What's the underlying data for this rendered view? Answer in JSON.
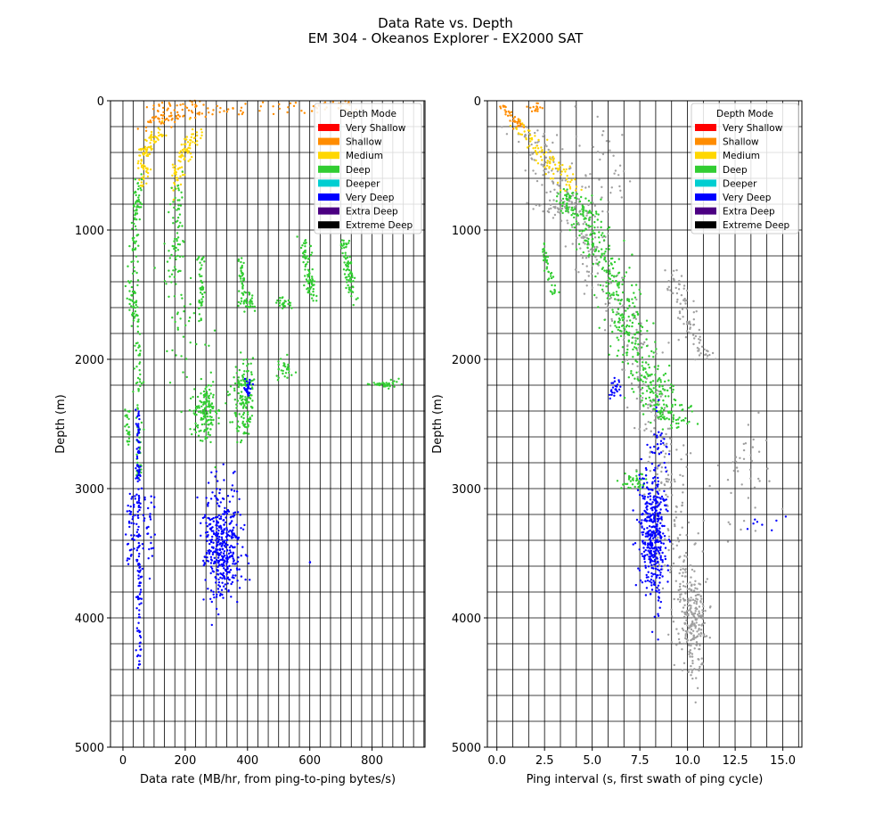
{
  "figure": {
    "title_line1": "Data Rate vs. Depth",
    "title_line2": "EM 304 - Okeanos Explorer - EX2000 SAT"
  },
  "legend": {
    "title": "Depth Mode",
    "entries": [
      {
        "label": "Very Shallow",
        "color": "#ff0000"
      },
      {
        "label": "Shallow",
        "color": "#ff8c00"
      },
      {
        "label": "Medium",
        "color": "#ffd700"
      },
      {
        "label": "Deep",
        "color": "#32cd32"
      },
      {
        "label": "Deeper",
        "color": "#00ced1"
      },
      {
        "label": "Very Deep",
        "color": "#0000ff"
      },
      {
        "label": "Extra Deep",
        "color": "#4b0082"
      },
      {
        "label": "Extreme Deep",
        "color": "#000000"
      }
    ]
  },
  "chart_data": [
    {
      "type": "scatter",
      "xlabel": "Data rate (MB/hr, from ping-to-ping bytes/s)",
      "ylabel": "Depth (m)",
      "xlim": [
        -40,
        970
      ],
      "ylim": [
        5000,
        0
      ],
      "y_inverted": true,
      "xticks": [
        0,
        200,
        400,
        600,
        800
      ],
      "yticks": [
        0,
        1000,
        2000,
        3000,
        4000,
        5000
      ],
      "grid": true,
      "legend_position": "top-right",
      "clusters": [
        {
          "mode": "Shallow",
          "color": "#ff8c00",
          "kind": "band",
          "points": [
            [
              70,
              200
            ],
            [
              110,
              150
            ],
            [
              160,
              120
            ],
            [
              230,
              90
            ],
            [
              330,
              70
            ],
            [
              480,
              60
            ],
            [
              650,
              50
            ],
            [
              740,
              40
            ]
          ],
          "spread": 10,
          "n": 120
        },
        {
          "mode": "Shallow",
          "color": "#ff8c00",
          "kind": "band",
          "points": [
            [
              80,
              50
            ],
            [
              120,
              40
            ],
            [
              200,
              35
            ],
            [
              260,
              30
            ]
          ],
          "spread": 8,
          "n": 30
        },
        {
          "mode": "Medium",
          "color": "#ffd700",
          "kind": "band",
          "points": [
            [
              60,
              650
            ],
            [
              70,
              450
            ],
            [
              90,
              320
            ],
            [
              120,
              220
            ]
          ],
          "spread": 10,
          "n": 90
        },
        {
          "mode": "Medium",
          "color": "#ffd700",
          "kind": "band",
          "points": [
            [
              170,
              700
            ],
            [
              180,
              500
            ],
            [
              200,
              350
            ],
            [
              240,
              250
            ]
          ],
          "spread": 12,
          "n": 90
        },
        {
          "mode": "Deep",
          "color": "#32cd32",
          "kind": "band",
          "points": [
            [
              55,
              550
            ],
            [
              45,
              800
            ],
            [
              35,
              1100
            ],
            [
              30,
              1500
            ],
            [
              40,
              1700
            ]
          ],
          "spread": 8,
          "n": 120
        },
        {
          "mode": "Deep",
          "color": "#32cd32",
          "kind": "band",
          "points": [
            [
              50,
              1700
            ],
            [
              52,
              2200
            ],
            [
              52,
              2800
            ],
            [
              50,
              2900
            ]
          ],
          "spread": 5,
          "n": 70
        },
        {
          "mode": "Deep",
          "color": "#32cd32",
          "kind": "band",
          "points": [
            [
              15,
              2400
            ],
            [
              15,
              2650
            ]
          ],
          "spread": 4,
          "n": 25
        },
        {
          "mode": "Deep",
          "color": "#32cd32",
          "kind": "band",
          "points": [
            [
              175,
              650
            ],
            [
              170,
              1000
            ],
            [
              160,
              1400
            ]
          ],
          "spread": 12,
          "n": 70
        },
        {
          "mode": "Deep",
          "color": "#32cd32",
          "kind": "band",
          "points": [
            [
              250,
              1200
            ],
            [
              250,
              1700
            ]
          ],
          "spread": 5,
          "n": 45
        },
        {
          "mode": "Deep",
          "color": "#32cd32",
          "kind": "blob",
          "cx": 265,
          "cy": 2420,
          "rx": 35,
          "ry": 220,
          "n": 150
        },
        {
          "mode": "Deep",
          "color": "#32cd32",
          "kind": "blob",
          "cx": 390,
          "cy": 2300,
          "rx": 35,
          "ry": 300,
          "n": 150
        },
        {
          "mode": "Deep",
          "color": "#32cd32",
          "kind": "band",
          "points": [
            [
              380,
              1200
            ],
            [
              385,
              1500
            ]
          ],
          "spread": 6,
          "n": 40
        },
        {
          "mode": "Deep",
          "color": "#32cd32",
          "kind": "blob",
          "cx": 400,
          "cy": 1560,
          "rx": 30,
          "ry": 60,
          "n": 35
        },
        {
          "mode": "Deep",
          "color": "#32cd32",
          "kind": "blob",
          "cx": 515,
          "cy": 1570,
          "rx": 25,
          "ry": 40,
          "n": 25
        },
        {
          "mode": "Deep",
          "color": "#32cd32",
          "kind": "blob",
          "cx": 520,
          "cy": 2080,
          "rx": 20,
          "ry": 90,
          "n": 30
        },
        {
          "mode": "Deep",
          "color": "#32cd32",
          "kind": "band",
          "points": [
            [
              580,
              1050
            ],
            [
              590,
              1300
            ],
            [
              610,
              1520
            ]
          ],
          "spread": 8,
          "n": 80
        },
        {
          "mode": "Deep",
          "color": "#32cd32",
          "kind": "band",
          "points": [
            [
              710,
              1060
            ],
            [
              720,
              1300
            ],
            [
              740,
              1530
            ]
          ],
          "spread": 8,
          "n": 80
        },
        {
          "mode": "Deep",
          "color": "#32cd32",
          "kind": "blob",
          "cx": 840,
          "cy": 2190,
          "rx": 40,
          "ry": 25,
          "n": 35
        },
        {
          "mode": "Deep",
          "color": "#32cd32",
          "kind": "blob",
          "cx": 200,
          "cy": 1800,
          "rx": 60,
          "ry": 500,
          "n": 40
        },
        {
          "mode": "Very Deep",
          "color": "#0000ff",
          "kind": "band",
          "points": [
            [
              50,
              2300
            ],
            [
              50,
              3000
            ],
            [
              52,
              3700
            ],
            [
              52,
              4400
            ]
          ],
          "spread": 4,
          "n": 160
        },
        {
          "mode": "Very Deep",
          "color": "#0000ff",
          "kind": "blob",
          "cx": 25,
          "cy": 3300,
          "rx": 14,
          "ry": 300,
          "n": 40
        },
        {
          "mode": "Very Deep",
          "color": "#0000ff",
          "kind": "blob",
          "cx": 85,
          "cy": 3300,
          "rx": 20,
          "ry": 250,
          "n": 30
        },
        {
          "mode": "Very Deep",
          "color": "#0000ff",
          "kind": "blob",
          "cx": 320,
          "cy": 3450,
          "rx": 55,
          "ry": 400,
          "n": 420
        },
        {
          "mode": "Very Deep",
          "color": "#0000ff",
          "kind": "blob",
          "cx": 400,
          "cy": 2220,
          "rx": 12,
          "ry": 60,
          "n": 30
        },
        {
          "mode": "Very Deep",
          "color": "#0000ff",
          "kind": "blob",
          "cx": 600,
          "cy": 3570,
          "rx": 3,
          "ry": 5,
          "n": 2
        }
      ]
    },
    {
      "type": "scatter",
      "xlabel": "Ping interval (s, first swath of ping cycle)",
      "ylabel": "Depth (m)",
      "xlim": [
        -0.5,
        16.0
      ],
      "ylim": [
        5000,
        0
      ],
      "y_inverted": true,
      "xticks": [
        0.0,
        2.5,
        5.0,
        7.5,
        10.0,
        12.5,
        15.0
      ],
      "yticks": [
        0,
        1000,
        2000,
        3000,
        4000,
        5000
      ],
      "grid": true,
      "legend_position": "top-right",
      "clusters": [
        {
          "mode": "All (gray)",
          "color": "#a0a0a0",
          "kind": "band",
          "points": [
            [
              1.5,
              200
            ],
            [
              3.0,
              600
            ],
            [
              4.5,
              1000
            ],
            [
              5.5,
              1400
            ],
            [
              7.0,
              1800
            ],
            [
              8.0,
              2200
            ],
            [
              8.5,
              2600
            ],
            [
              9.0,
              3000
            ],
            [
              9.5,
              3500
            ],
            [
              10.0,
              3900
            ],
            [
              10.5,
              4200
            ]
          ],
          "spread": 0.6,
          "n": 500
        },
        {
          "mode": "All (gray)",
          "color": "#a0a0a0",
          "kind": "blob",
          "cx": 10.3,
          "cy": 4000,
          "rx": 0.6,
          "ry": 400,
          "n": 180
        },
        {
          "mode": "All (gray)",
          "color": "#a0a0a0",
          "kind": "band",
          "points": [
            [
              9.0,
              1300
            ],
            [
              10.0,
              1700
            ],
            [
              11.0,
              2000
            ]
          ],
          "spread": 0.3,
          "n": 90
        },
        {
          "mode": "All (gray)",
          "color": "#a0a0a0",
          "kind": "blob",
          "cx": 3.5,
          "cy": 820,
          "rx": 1.5,
          "ry": 60,
          "n": 50
        },
        {
          "mode": "All (gray)",
          "color": "#a0a0a0",
          "kind": "blob",
          "cx": 13.0,
          "cy": 2900,
          "rx": 1.2,
          "ry": 400,
          "n": 40
        },
        {
          "mode": "All (gray)",
          "color": "#a0a0a0",
          "kind": "blob",
          "cx": 5.5,
          "cy": 500,
          "rx": 1.5,
          "ry": 300,
          "n": 40
        },
        {
          "mode": "Shallow",
          "color": "#ff8c00",
          "kind": "band",
          "points": [
            [
              0.3,
              40
            ],
            [
              0.8,
              120
            ],
            [
              1.4,
              220
            ]
          ],
          "spread": 0.15,
          "n": 40
        },
        {
          "mode": "Shallow",
          "color": "#ff8c00",
          "kind": "blob",
          "cx": 2.1,
          "cy": 60,
          "rx": 0.3,
          "ry": 30,
          "n": 15
        },
        {
          "mode": "Medium",
          "color": "#ffd700",
          "kind": "band",
          "points": [
            [
              1.2,
              200
            ],
            [
              2.0,
              350
            ],
            [
              3.0,
              500
            ],
            [
              3.8,
              700
            ]
          ],
          "spread": 0.35,
          "n": 90
        },
        {
          "mode": "Deep",
          "color": "#32cd32",
          "kind": "band",
          "points": [
            [
              3.8,
              700
            ],
            [
              4.5,
              900
            ],
            [
              5.5,
              1200
            ],
            [
              6.5,
              1500
            ],
            [
              7.0,
              1800
            ],
            [
              7.8,
              2100
            ],
            [
              8.5,
              2300
            ],
            [
              9.3,
              2500
            ]
          ],
          "spread": 0.55,
          "n": 520
        },
        {
          "mode": "Deep",
          "color": "#32cd32",
          "kind": "band",
          "points": [
            [
              2.4,
              1100
            ],
            [
              2.7,
              1300
            ],
            [
              3.0,
              1500
            ]
          ],
          "spread": 0.12,
          "n": 40
        },
        {
          "mode": "Deep",
          "color": "#32cd32",
          "kind": "blob",
          "cx": 7.2,
          "cy": 2950,
          "rx": 0.6,
          "ry": 60,
          "n": 40
        },
        {
          "mode": "Very Deep",
          "color": "#0000ff",
          "kind": "blob",
          "cx": 8.2,
          "cy": 3350,
          "rx": 0.65,
          "ry": 450,
          "n": 420
        },
        {
          "mode": "Very Deep",
          "color": "#0000ff",
          "kind": "blob",
          "cx": 6.2,
          "cy": 2220,
          "rx": 0.3,
          "ry": 80,
          "n": 25
        },
        {
          "mode": "Very Deep",
          "color": "#0000ff",
          "kind": "blob",
          "cx": 14.0,
          "cy": 3250,
          "rx": 1.0,
          "ry": 80,
          "n": 8
        },
        {
          "mode": "Very Deep",
          "color": "#0000ff",
          "kind": "blob",
          "cx": 8.5,
          "cy": 2700,
          "rx": 0.3,
          "ry": 250,
          "n": 20
        }
      ]
    }
  ]
}
